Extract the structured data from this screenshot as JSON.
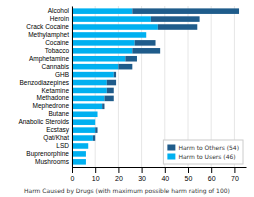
{
  "chart_data": {
    "type": "bar",
    "orientation": "horizontal",
    "stacked": true,
    "categories": [
      "Alcohol",
      "Heroin",
      "Crack Cocaine",
      "Methylamphet",
      "Cocaine",
      "Tobacco",
      "Amphetamine",
      "Cannabis",
      "GHB",
      "Benzodiazepines",
      "Ketamine",
      "Methadone",
      "Mephedrone",
      "Butane",
      "Anabolic Steroids",
      "Ecstasy",
      "Qat/Khat",
      "LSD",
      "Buprenorphine",
      "Mushrooms"
    ],
    "series": [
      {
        "name": "Harm to Users (46)",
        "color": "#00b0f0",
        "values": [
          26,
          34,
          37,
          32,
          27,
          26,
          23,
          20,
          18,
          15,
          15,
          14,
          13,
          11,
          10,
          10,
          9,
          7,
          6,
          6
        ]
      },
      {
        "name": "Harm to Others (54)",
        "color": "#1f5c8b",
        "values": [
          46,
          21,
          17,
          0,
          9,
          12,
          5,
          6,
          1,
          4,
          3,
          4,
          1,
          0,
          0,
          1,
          1,
          0,
          0,
          0
        ]
      }
    ],
    "x_label": "Harm Caused by Drugs (with maximum possible harm rating of 100)",
    "xlim": [
      0,
      75
    ],
    "xticks": [
      0,
      10,
      20,
      30,
      40,
      50,
      60,
      70
    ],
    "grid": true,
    "legend": "lower right"
  }
}
